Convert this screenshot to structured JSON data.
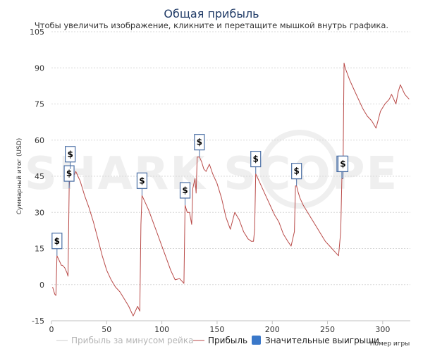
{
  "chart_data": {
    "type": "line",
    "title": "Общая прибыль",
    "subtitle": "Чтобы увеличить изображение, кликните и перетащите мышкой внутрь графика.",
    "ylabel": "Суммарный итог (USD)",
    "xlabel": "Номер игры",
    "xlim": [
      0,
      325
    ],
    "ylim": [
      -15,
      105
    ],
    "x_ticks": [
      0,
      50,
      100,
      150,
      200,
      250,
      300
    ],
    "y_ticks": [
      -15,
      0,
      15,
      30,
      45,
      60,
      75,
      90,
      105
    ],
    "grid": true,
    "watermark": "SHARK SCOPE",
    "legend": [
      {
        "name": "Прибыль за минусом рейка",
        "color": "#cccccc",
        "marker": "line"
      },
      {
        "name": "Прибыль",
        "color": "#b94a48",
        "marker": "line"
      },
      {
        "name": "Значительные выигрыши",
        "color": "#3a78c9",
        "marker": "box"
      }
    ],
    "series": [
      {
        "name": "Прибыль",
        "color": "#b94a48",
        "x": [
          1,
          3,
          4,
          5,
          7,
          9,
          10,
          12,
          14,
          15,
          16,
          17,
          18,
          20,
          22,
          24,
          26,
          28,
          30,
          34,
          38,
          42,
          46,
          50,
          54,
          58,
          62,
          66,
          70,
          74,
          78,
          80,
          81,
          82,
          84,
          88,
          92,
          96,
          100,
          104,
          108,
          112,
          116,
          119,
          120,
          121,
          123,
          125,
          127,
          128,
          130,
          131,
          132,
          134,
          136,
          138,
          140,
          143,
          146,
          150,
          154,
          158,
          162,
          166,
          170,
          174,
          178,
          181,
          183,
          184,
          185,
          187,
          190,
          194,
          198,
          202,
          206,
          210,
          214,
          217,
          219,
          220,
          221,
          222,
          223,
          225,
          228,
          232,
          236,
          240,
          244,
          248,
          252,
          256,
          260,
          262,
          263,
          264,
          265,
          266,
          270,
          274,
          278,
          282,
          286,
          290,
          294,
          298,
          302,
          306,
          308,
          310,
          312,
          314,
          316,
          318,
          320,
          322,
          324
        ],
        "values": [
          -1,
          -4,
          -4.5,
          12,
          10,
          8,
          8,
          7,
          5,
          3.5,
          40,
          48,
          47,
          45,
          47,
          45,
          43,
          40,
          37,
          32,
          26,
          19,
          12,
          6,
          2,
          -1,
          -3,
          -6,
          -9,
          -13,
          -9,
          -11,
          25,
          37,
          35,
          31,
          26,
          21,
          16,
          11,
          6,
          2,
          2.5,
          1,
          0.5,
          33,
          30,
          30,
          25,
          40,
          44,
          38,
          53,
          53,
          51,
          48,
          47,
          50,
          46,
          42,
          36,
          28,
          23,
          30,
          27,
          22,
          19,
          18,
          18,
          23,
          46,
          44,
          41,
          37,
          33,
          29,
          26,
          21,
          18,
          16,
          20,
          22,
          41,
          41,
          39,
          36,
          33,
          30,
          27,
          24,
          21,
          18,
          16,
          14,
          12,
          22,
          44,
          44,
          92,
          90,
          85,
          81,
          77,
          73,
          70,
          68,
          65,
          72,
          75,
          77,
          79,
          77,
          75,
          80,
          83,
          81,
          79,
          78,
          77
        ]
      }
    ],
    "significant_wins": [
      5,
      16,
      17,
      82,
      121,
      134,
      185,
      222,
      263,
      264
    ]
  }
}
